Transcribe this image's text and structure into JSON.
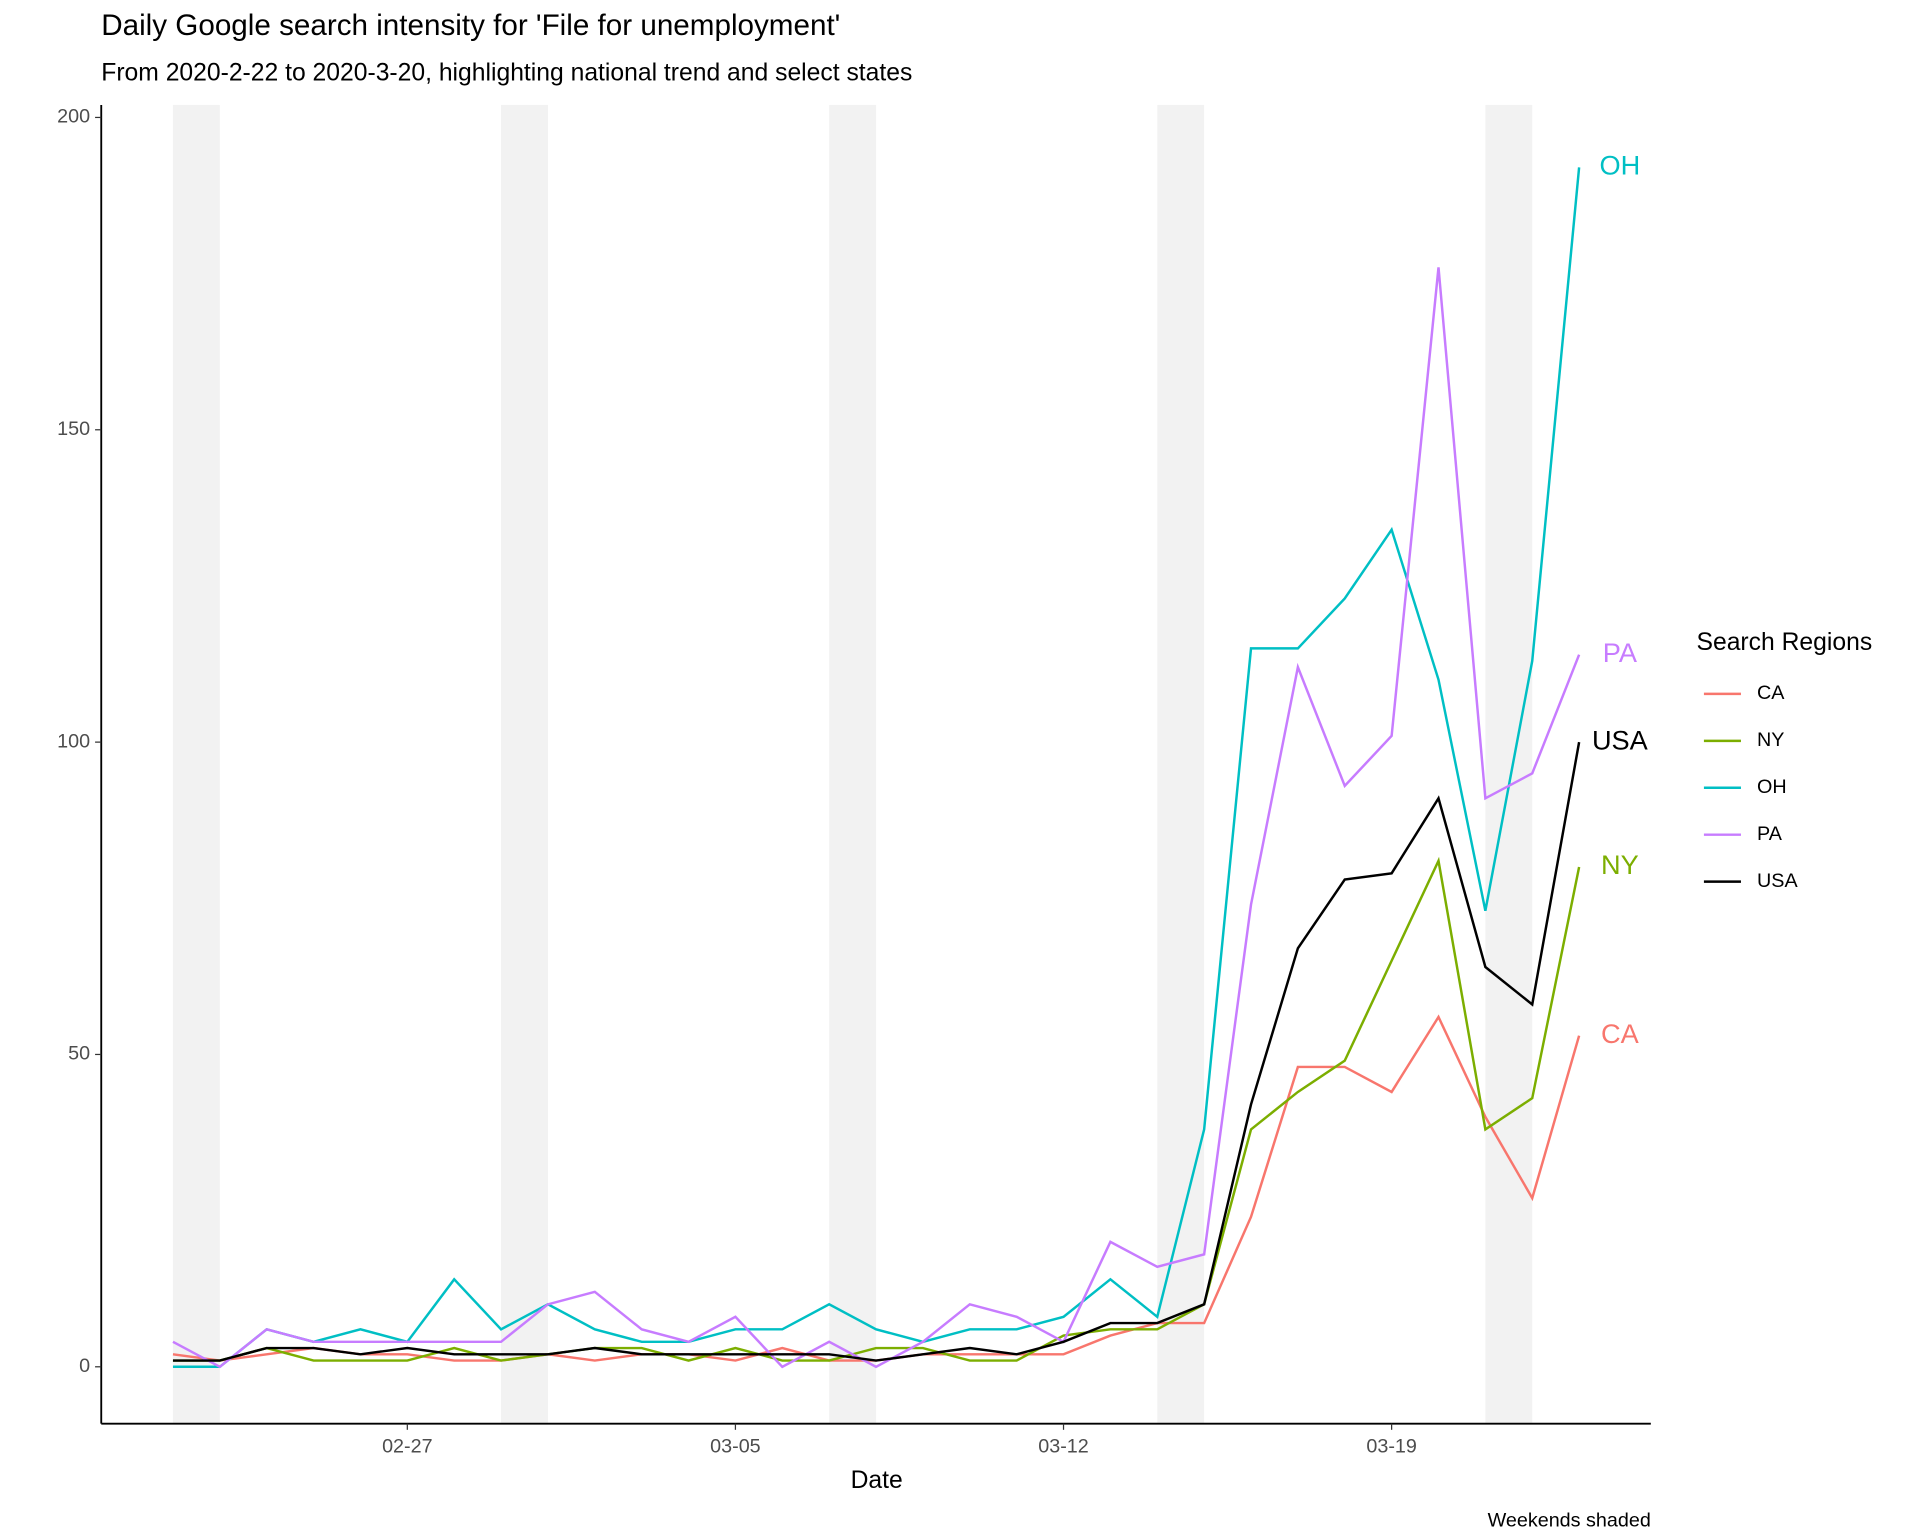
{
  "chart_data": {
    "type": "line",
    "title": "Daily Google search intensity  for 'File for unemployment'",
    "subtitle": "From 2020-2-22 to 2020-3-20, highlighting national trend and select states",
    "x_label": "Date",
    "caption": "Weekends shaded",
    "legend_title": "Search Regions",
    "legend": "right",
    "categories": [
      "02-22",
      "02-23",
      "02-24",
      "02-25",
      "02-26",
      "02-27",
      "02-28",
      "02-29",
      "03-01",
      "03-02",
      "03-03",
      "03-04",
      "03-05",
      "03-06",
      "03-07",
      "03-08",
      "03-09",
      "03-10",
      "03-11",
      "03-12",
      "03-13",
      "03-14",
      "03-15",
      "03-16",
      "03-17",
      "03-18",
      "03-19",
      "03-20",
      "03-21",
      "03-22",
      "03-23"
    ],
    "xticks": [
      "02-27",
      "03-05",
      "03-12",
      "03-19"
    ],
    "weekends": [
      [
        "02-22",
        "02-23"
      ],
      [
        "02-29",
        "03-01"
      ],
      [
        "03-07",
        "03-08"
      ],
      [
        "03-14",
        "03-15"
      ],
      [
        "03-21",
        "03-22"
      ]
    ],
    "ylim": [
      -9.1,
      202
    ],
    "yticks": [
      0,
      50,
      100,
      150,
      200
    ],
    "series": [
      {
        "name": "CA",
        "color": "#F8766D",
        "values": [
          2,
          1,
          2,
          3,
          2,
          2,
          1,
          1,
          2,
          1,
          2,
          2,
          1,
          3,
          1,
          1,
          2,
          2,
          2,
          2,
          5,
          7,
          7,
          24,
          48,
          48,
          44,
          56,
          40,
          27,
          53
        ]
      },
      {
        "name": "NY",
        "color": "#7CAE00",
        "values": [
          1,
          1,
          3,
          1,
          1,
          1,
          3,
          1,
          2,
          3,
          3,
          1,
          3,
          1,
          1,
          3,
          3,
          1,
          1,
          5,
          6,
          6,
          10,
          38,
          44,
          49,
          65,
          81,
          38,
          43,
          80
        ]
      },
      {
        "name": "OH",
        "color": "#00BFC4",
        "values": [
          0,
          0,
          6,
          4,
          6,
          4,
          14,
          6,
          10,
          6,
          4,
          4,
          6,
          6,
          10,
          6,
          4,
          6,
          6,
          8,
          14,
          8,
          38,
          115,
          115,
          123,
          134,
          110,
          73,
          113,
          192
        ]
      },
      {
        "name": "PA",
        "color": "#C77CFF",
        "values": [
          4,
          0,
          6,
          4,
          4,
          4,
          4,
          4,
          10,
          12,
          6,
          4,
          8,
          0,
          4,
          0,
          4,
          10,
          8,
          4,
          20,
          16,
          18,
          74,
          112,
          93,
          101,
          176,
          91,
          95,
          114
        ]
      },
      {
        "name": "USA",
        "color": "#000000",
        "values": [
          1,
          1,
          3,
          3,
          2,
          3,
          2,
          2,
          2,
          3,
          2,
          2,
          2,
          2,
          2,
          1,
          2,
          3,
          2,
          4,
          7,
          7,
          10,
          42,
          67,
          78,
          79,
          91,
          64,
          58,
          100
        ]
      }
    ]
  }
}
